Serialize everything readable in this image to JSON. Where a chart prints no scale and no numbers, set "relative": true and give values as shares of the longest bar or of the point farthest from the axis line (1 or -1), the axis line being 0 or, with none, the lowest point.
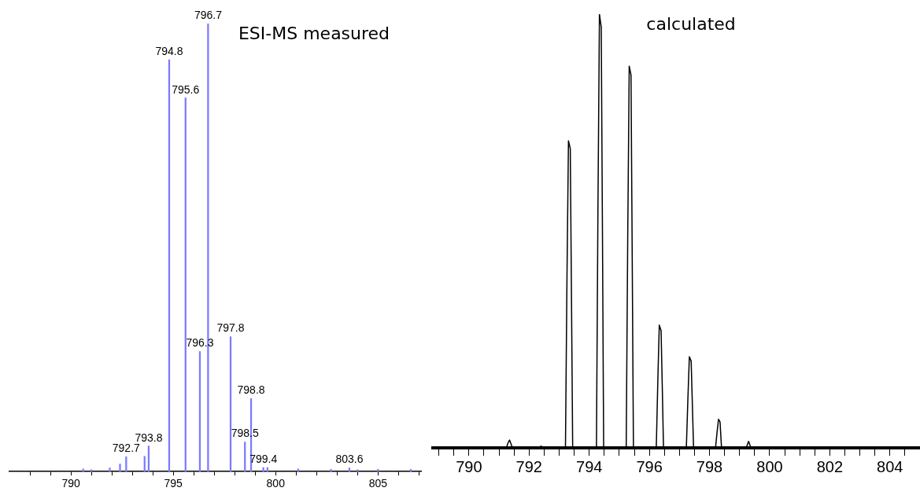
{
  "chart_data": [
    {
      "type": "bar",
      "title": "ESI-MS measured",
      "relative": true,
      "xlim": [
        787,
        807.1
      ],
      "xticks": [
        {
          "value": 788,
          "label": null
        },
        {
          "value": 789,
          "label": null
        },
        790,
        {
          "value": 791,
          "label": null
        },
        {
          "value": 792,
          "label": null
        },
        {
          "value": 793,
          "label": null
        },
        {
          "value": 794,
          "label": null
        },
        795,
        {
          "value": 796,
          "label": null
        },
        {
          "value": 797,
          "label": null
        },
        {
          "value": 798,
          "label": null
        },
        {
          "value": 799,
          "label": null
        },
        800,
        {
          "value": 801,
          "label": null
        },
        {
          "value": 802,
          "label": null
        },
        {
          "value": 803,
          "label": null
        },
        {
          "value": 804,
          "label": null
        },
        805,
        {
          "value": 806,
          "label": null
        },
        {
          "value": 807,
          "label": null
        }
      ],
      "x": [
        790.6,
        791.0,
        791.9,
        792.4,
        792.7,
        793.6,
        793.8,
        794.8,
        795.6,
        796.3,
        796.7,
        797.8,
        798.5,
        798.8,
        799.4,
        799.6,
        801.1,
        802.7,
        803.6,
        804.0,
        805.0,
        806.6
      ],
      "values": [
        0.006,
        0.004,
        0.008,
        0.017,
        0.033,
        0.034,
        0.057,
        0.919,
        0.834,
        0.268,
        1,
        0.301,
        0.066,
        0.163,
        0.009,
        0.009,
        0.006,
        0.005,
        0.008,
        0.004,
        0.005,
        0.005
      ],
      "annotations": [
        {
          "text": "792.7",
          "x": 792.7,
          "y": 0.033
        },
        {
          "text": "793.8",
          "x": 793.8,
          "y": 0.057
        },
        {
          "text": "794.8",
          "x": 794.8,
          "y": 0.919
        },
        {
          "text": "795.6",
          "x": 795.6,
          "y": 0.834
        },
        {
          "text": "796.3",
          "x": 796.3,
          "y": 0.268
        },
        {
          "text": "796.7",
          "x": 796.7,
          "y": 1
        },
        {
          "text": "797.8",
          "x": 797.8,
          "y": 0.301
        },
        {
          "text": "798.5",
          "x": 798.5,
          "y": 0.066
        },
        {
          "text": "798.8",
          "x": 798.8,
          "y": 0.163
        },
        {
          "text": "799.4",
          "x": 799.4,
          "y": 0.009
        },
        {
          "text": "803.6",
          "x": 803.6,
          "y": 0.008
        }
      ],
      "color": "#7b7bff",
      "legend": false,
      "grid": false
    },
    {
      "type": "line",
      "title": "calculated",
      "relative": true,
      "xlim": [
        788.8,
        805
      ],
      "xticks": [
        {
          "value": 789,
          "label": null
        },
        {
          "value": 789.5,
          "label": null
        },
        790,
        {
          "value": 790.5,
          "label": null
        },
        {
          "value": 791,
          "label": null
        },
        {
          "value": 791.5,
          "label": null
        },
        792,
        {
          "value": 792.5,
          "label": null
        },
        {
          "value": 793,
          "label": null
        },
        {
          "value": 793.5,
          "label": null
        },
        794,
        {
          "value": 794.5,
          "label": null
        },
        {
          "value": 795,
          "label": null
        },
        {
          "value": 795.5,
          "label": null
        },
        796,
        {
          "value": 796.5,
          "label": null
        },
        {
          "value": 797,
          "label": null
        },
        {
          "value": 797.5,
          "label": null
        },
        798,
        {
          "value": 798.5,
          "label": null
        },
        {
          "value": 799,
          "label": null
        },
        {
          "value": 799.5,
          "label": null
        },
        800,
        {
          "value": 800.5,
          "label": null
        },
        {
          "value": 801,
          "label": null
        },
        {
          "value": 801.5,
          "label": null
        },
        802,
        {
          "value": 802.5,
          "label": null
        },
        {
          "value": 803,
          "label": null
        },
        {
          "value": 803.5,
          "label": null
        },
        804,
        {
          "value": 804.5,
          "label": null
        }
      ],
      "x": [
        788.8,
        791.25,
        791.29,
        791.35,
        791.4,
        791.45,
        792.3,
        792.4,
        792.5,
        793.21,
        793.26,
        793.31,
        793.37,
        793.41,
        793.45,
        794.24,
        794.29,
        794.34,
        794.4,
        794.44,
        794.48,
        795.23,
        795.28,
        795.33,
        795.39,
        795.43,
        795.47,
        796.23,
        796.28,
        796.33,
        796.39,
        796.43,
        796.47,
        797.23,
        797.28,
        797.33,
        797.39,
        797.43,
        797.47,
        798.2,
        798.25,
        798.3,
        798.35,
        798.4,
        799.22,
        799.3,
        799.38,
        805
      ],
      "values": [
        0,
        0,
        0.01,
        0.018,
        0.009,
        0,
        0,
        0.004,
        0,
        0,
        0.39,
        0.708,
        0.69,
        0.35,
        0,
        0,
        0.55,
        1,
        0.97,
        0.5,
        0,
        0,
        0.48,
        0.88,
        0.86,
        0.44,
        0,
        0,
        0.15,
        0.283,
        0.27,
        0.14,
        0,
        0,
        0.11,
        0.21,
        0.2,
        0.1,
        0,
        0,
        0.035,
        0.066,
        0.06,
        0,
        0,
        0.015,
        0,
        0
      ],
      "color": "#000000",
      "marker": "none",
      "line_style": "solid",
      "legend": false,
      "grid": false
    }
  ]
}
